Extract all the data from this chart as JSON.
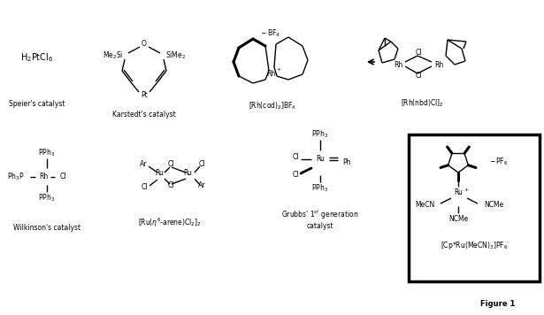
{
  "bg_color": "#ffffff",
  "fig_width": 6.15,
  "fig_height": 3.56,
  "dpi": 100,
  "figure_label": "Figure 1",
  "speier_label": "Speier's catalyst",
  "karstedt_label": "Karstedt's catalyst",
  "rh_cod_label": "[Rh(cod)$_2$]BF$_4$",
  "rh_nbd_label": "[Rh(nbd)Cl]$_2$",
  "wilkinson_label": "Wilkinson's catalyst",
  "ru_arene_label": "[Ru($\\eta^6$-arene)Cl$_2$]$_2$",
  "grubbs_label": "Grubbs' 1$^{st}$ generation\ncatalyst",
  "cp_ru_label": "[Cp*Ru(MeCN)$_3$]PF$_6$"
}
